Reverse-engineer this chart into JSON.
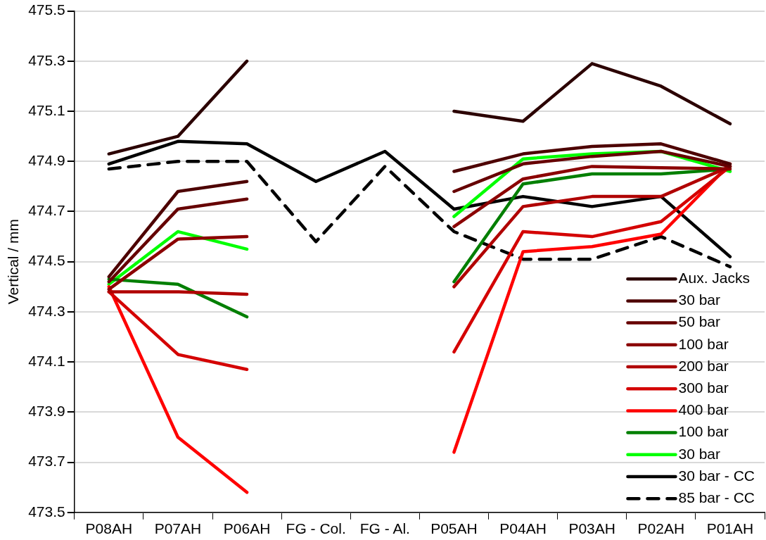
{
  "chart_data": {
    "type": "line",
    "ylabel": "Vertical / mm",
    "categories": [
      "P08AH",
      "P07AH",
      "P06AH",
      "FG - Col.",
      "FG - Al.",
      "P05AH",
      "P04AH",
      "P03AH",
      "P02AH",
      "P01AH"
    ],
    "ylim": [
      473.5,
      475.5
    ],
    "yticks": [
      473.5,
      473.7,
      473.9,
      474.1,
      474.3,
      474.5,
      474.7,
      474.9,
      475.1,
      475.3,
      475.5
    ],
    "grid": "y",
    "legend": "bottom right",
    "marker": "none",
    "line_style": "solid",
    "series": [
      {
        "name": "Aux. Jacks",
        "color": "#2b0000",
        "values": [
          474.93,
          475.0,
          475.3,
          null,
          null,
          475.1,
          475.06,
          475.29,
          475.2,
          475.05
        ]
      },
      {
        "name": "30 bar",
        "color": "#4d0000",
        "values": [
          474.44,
          474.78,
          474.82,
          null,
          null,
          474.86,
          474.93,
          474.96,
          474.97,
          474.89
        ]
      },
      {
        "name": "50 bar",
        "color": "#660000",
        "values": [
          474.42,
          474.71,
          474.75,
          null,
          null,
          474.78,
          474.89,
          474.92,
          474.94,
          474.88
        ]
      },
      {
        "name": "100 bar",
        "color": "#8b0000",
        "values": [
          474.39,
          474.59,
          474.6,
          null,
          null,
          474.64,
          474.83,
          474.88,
          474.875,
          474.87
        ]
      },
      {
        "name": "200 bar",
        "color": "#b00000",
        "values": [
          474.38,
          474.38,
          474.37,
          null,
          null,
          474.4,
          474.72,
          474.76,
          474.76,
          474.88
        ]
      },
      {
        "name": "300 bar",
        "color": "#d40000",
        "values": [
          474.38,
          474.13,
          474.07,
          null,
          null,
          474.14,
          474.62,
          474.6,
          474.66,
          474.88
        ]
      },
      {
        "name": "400 bar",
        "color": "#ff0000",
        "values": [
          474.4,
          473.8,
          473.58,
          null,
          null,
          473.74,
          474.54,
          474.56,
          474.61,
          474.89
        ]
      },
      {
        "name": "100 bar",
        "color": "#007f00",
        "values": [
          474.43,
          474.41,
          474.28,
          null,
          null,
          474.42,
          474.81,
          474.85,
          474.85,
          474.87
        ]
      },
      {
        "name": "30 bar",
        "color": "#00ff00",
        "values": [
          474.41,
          474.62,
          474.55,
          null,
          null,
          474.68,
          474.91,
          474.93,
          474.94,
          474.86
        ]
      },
      {
        "name": "30 bar - CC",
        "color": "#000000",
        "values": [
          474.89,
          474.98,
          474.97,
          474.82,
          474.94,
          474.71,
          474.76,
          474.72,
          474.76,
          474.52
        ]
      },
      {
        "name": "85 bar - CC",
        "color": "#000000",
        "line_style": "dashed",
        "values": [
          474.87,
          474.9,
          474.9,
          474.58,
          474.88,
          474.62,
          474.51,
          474.51,
          474.6,
          474.48
        ]
      }
    ]
  }
}
